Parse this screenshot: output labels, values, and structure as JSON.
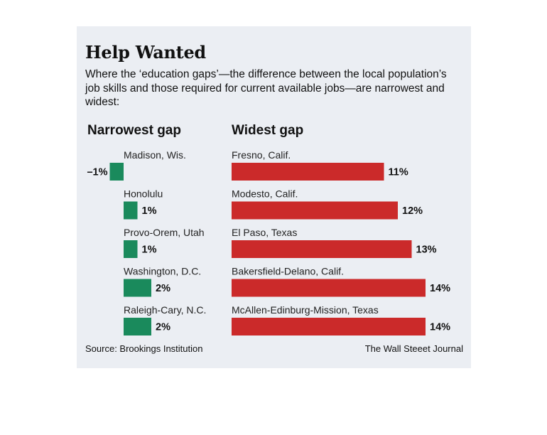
{
  "title": "Help Wanted",
  "subtitle": "Where the ‘education gaps’—the difference between the local population’s job skills and those required for current available jobs—are narrowest and widest:",
  "source": "Source: Brookings Institution",
  "credit": "The Wall Steeet Journal",
  "colors": {
    "narrow": "#1a8a5c",
    "wide": "#cb2a2a",
    "background": "#ebeef3"
  },
  "chart_data": [
    {
      "type": "bar",
      "orientation": "horizontal",
      "title": "Narrowest gap",
      "categories": [
        "Madison, Wis.",
        "Honolulu",
        "Provo-Orem, Utah",
        "Washington, D.C.",
        "Raleigh-Cary, N.C."
      ],
      "values": [
        -1,
        1,
        1,
        2,
        2
      ],
      "labels": [
        "–1%",
        "1%",
        "1%",
        "2%",
        "2%"
      ]
    },
    {
      "type": "bar",
      "orientation": "horizontal",
      "title": "Widest gap",
      "categories": [
        "Fresno, Calif.",
        "Modesto, Calif.",
        "El Paso, Texas",
        "Bakersfield-Delano, Calif.",
        "McAllen-Edinburg-Mission, Texas"
      ],
      "values": [
        11,
        12,
        13,
        14,
        14
      ],
      "labels": [
        "11%",
        "12%",
        "13%",
        "14%",
        "14%"
      ]
    }
  ]
}
